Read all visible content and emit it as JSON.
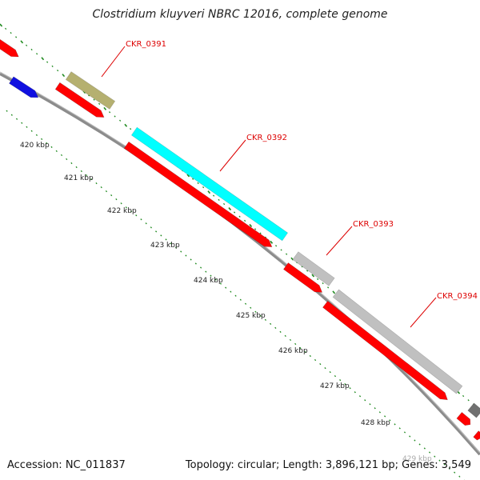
{
  "title": "Clostridium kluyveri NBRC 12016, complete genome",
  "footer": {
    "accession": "Accession: NC_011837",
    "stats": "Topology: circular; Length: 3,896,121 bp; Genes: 3,549"
  },
  "scale": {
    "labels": [
      "420 kbp",
      "421 kbp",
      "422 kbp",
      "423 kbp",
      "424 kbp",
      "425 kbp",
      "426 kbp",
      "427 kbp",
      "428 kbp",
      "429 kbp"
    ]
  },
  "gene_labels": [
    "CKR_0391",
    "CKR_0392",
    "CKR_0393",
    "CKR_0394"
  ],
  "colors": {
    "backbone": "#8c8c8c",
    "tick": "#1f8a1f",
    "cds_red": "#ff0000",
    "label_red": "#dd0000",
    "olive": "#b5b070",
    "cyan": "#00ffff",
    "light_gray": "#c0c0c0",
    "dark_gray": "#707070",
    "blue": "#1010e0"
  }
}
